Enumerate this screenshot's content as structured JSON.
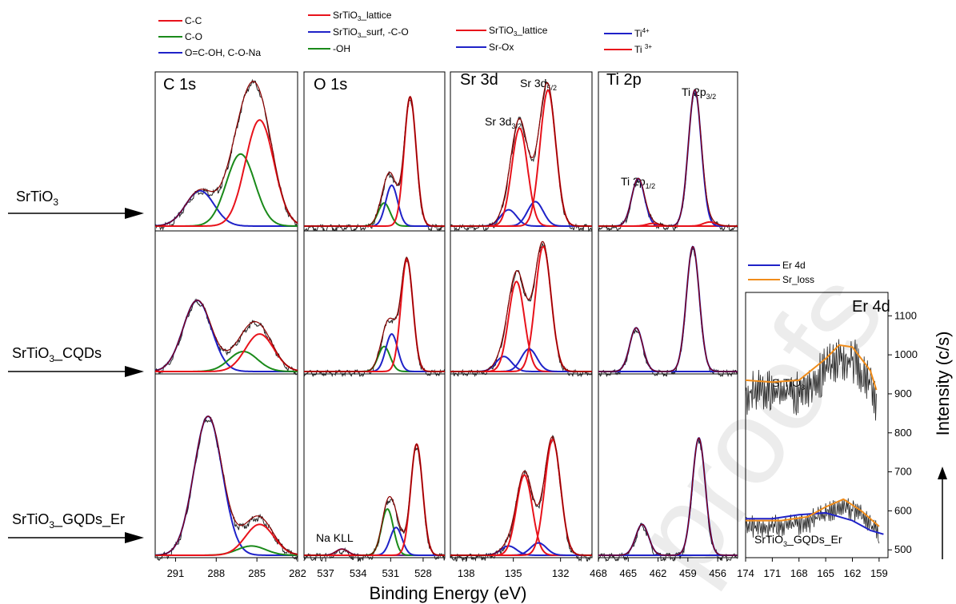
{
  "figure": {
    "xlabel": "Binding Energy (eV)",
    "ylabel": "Intensity (c/s)",
    "watermark": "proofs",
    "colors": {
      "c_red": "#e8121b",
      "c_green": "#1a8a1a",
      "c_blue": "#1f22c8",
      "c_darkred": "#8b0000",
      "c_orange": "#f08c1a",
      "c_purple": "#6a1f8f",
      "c_black": "#222222"
    }
  },
  "rows": [
    {
      "label_main": "SrTiO",
      "label_sub": "3",
      "label_rest": ""
    },
    {
      "label_main": "SrTiO",
      "label_sub": "3",
      "label_rest": "_CQDs"
    },
    {
      "label_main": "SrTiO",
      "label_sub": "3",
      "label_rest": "_GQDs_Er"
    }
  ],
  "panels_text": {
    "c1s": "C 1s",
    "o1s": "O 1s",
    "sr3d": "Sr 3d",
    "ti2p": "Ti 2p",
    "er4d": "Er 4d",
    "sr_d32_main": "Sr 3d",
    "sr_d32_sub": "3/2",
    "sr_d52_main": "Sr 3d",
    "sr_d52_sub": "5/2",
    "ti_p12_main": "Ti 2p",
    "ti_p12_sub": "1/2",
    "ti_p32_main": "Ti 2p",
    "ti_p32_sub": "3/2",
    "na_kll": "Na KLL",
    "er_label1_main": "SrTiO",
    "er_label1_sub": "3",
    "er_label2": "SrTiO",
    "er_label2_sub": "3",
    "er_label2_rest": "_GQDs_Er"
  },
  "legends": {
    "c1s": [
      {
        "label": "C-C",
        "color": "#e8121b"
      },
      {
        "label": "C-O",
        "color": "#1a8a1a"
      },
      {
        "label": "O=C-OH, C-O-Na",
        "color": "#1f22c8"
      }
    ],
    "o1s": [
      {
        "label": "SrTiO",
        "sub": "3",
        "rest": "_lattice",
        "color": "#e8121b"
      },
      {
        "label": "SrTiO",
        "sub": "3",
        "rest": "_surf, -C-O",
        "color": "#1f22c8"
      },
      {
        "label": "-OH",
        "sub": "",
        "rest": "",
        "color": "#1a8a1a"
      }
    ],
    "sr3d": [
      {
        "label": "SrTiO",
        "sub": "3",
        "rest": "_lattice",
        "color": "#e8121b"
      },
      {
        "label": "Sr-Ox",
        "sub": "",
        "rest": "",
        "color": "#1f22c8"
      }
    ],
    "ti2p": [
      {
        "label": "Ti",
        "sup": "4+",
        "color": "#1f22c8"
      },
      {
        "label": "Ti ",
        "sup": "3+",
        "color": "#e8121b"
      }
    ],
    "er4d": [
      {
        "label": "Er 4d",
        "color": "#1f22c8"
      },
      {
        "label": "Sr_loss",
        "color": "#f08c1a"
      }
    ]
  },
  "axes": {
    "c1s": {
      "ticks": [
        "291",
        "288",
        "285",
        "282"
      ]
    },
    "o1s": {
      "ticks": [
        "537",
        "534",
        "531",
        "528"
      ]
    },
    "sr3d": {
      "ticks": [
        "138",
        "135",
        "132"
      ]
    },
    "ti2p": {
      "ticks": [
        "468",
        "465",
        "462",
        "459",
        "456"
      ]
    },
    "er4d": {
      "ticks": [
        "174",
        "171",
        "168",
        "165",
        "162",
        "159"
      ]
    },
    "intensity": {
      "ticks": [
        "1100",
        "1000",
        "900",
        "800",
        "700",
        "600",
        "500"
      ]
    }
  },
  "chart_data": [
    {
      "type": "line",
      "title": "C 1s",
      "xlim": [
        292.5,
        282
      ],
      "direction": "reversed",
      "rows": [
        {
          "sample": "SrTiO3",
          "peaks": [
            {
              "component": "O=C-OH, C-O-Na",
              "center": 289.2,
              "height": 0.26
            },
            {
              "component": "C-O",
              "center": 286.2,
              "height": 0.53
            },
            {
              "component": "C-C",
              "center": 284.8,
              "height": 0.78
            }
          ]
        },
        {
          "sample": "SrTiO3_CQDs",
          "peaks": [
            {
              "component": "O=C-OH, C-O-Na",
              "center": 289.4,
              "height": 0.57
            },
            {
              "component": "C-O",
              "center": 286.0,
              "height": 0.16
            },
            {
              "component": "C-C",
              "center": 284.8,
              "height": 0.3
            }
          ]
        },
        {
          "sample": "SrTiO3_GQDs_Er",
          "peaks": [
            {
              "component": "O=C-OH, C-O-Na",
              "center": 288.6,
              "height": 0.9
            },
            {
              "component": "C-O",
              "center": 285.4,
              "height": 0.06
            },
            {
              "component": "C-C",
              "center": 284.8,
              "height": 0.2
            }
          ]
        }
      ]
    },
    {
      "type": "line",
      "title": "O 1s",
      "xlim": [
        539,
        526
      ],
      "direction": "reversed",
      "rows": [
        {
          "sample": "SrTiO3",
          "peaks": [
            {
              "component": "-OH",
              "center": 531.6,
              "height": 0.17
            },
            {
              "component": "SrTiO3_surf, -C-O",
              "center": 530.9,
              "height": 0.3
            },
            {
              "component": "SrTiO3_lattice",
              "center": 529.2,
              "height": 0.95
            }
          ]
        },
        {
          "sample": "SrTiO3_CQDs",
          "peaks": [
            {
              "component": "-OH",
              "center": 531.6,
              "height": 0.2
            },
            {
              "component": "SrTiO3_surf, -C-O",
              "center": 530.9,
              "height": 0.3
            },
            {
              "component": "SrTiO3_lattice",
              "center": 529.5,
              "height": 0.9
            }
          ]
        },
        {
          "sample": "SrTiO3_GQDs_Er",
          "peaks": [
            {
              "component": "Na KLL",
              "center": 535.5,
              "height": 0.04
            },
            {
              "component": "-OH",
              "center": 531.3,
              "height": 0.3
            },
            {
              "component": "SrTiO3_surf, -C-O",
              "center": 530.5,
              "height": 0.18
            },
            {
              "component": "SrTiO3_lattice",
              "center": 528.6,
              "height": 0.72
            }
          ]
        }
      ]
    },
    {
      "type": "line",
      "title": "Sr 3d",
      "xlim": [
        139,
        130
      ],
      "direction": "reversed",
      "rows": [
        {
          "sample": "SrTiO3",
          "peaks": [
            {
              "component": "Sr-Ox",
              "center": 135.3,
              "height": 0.12
            },
            {
              "component": "SrTiO3_lattice",
              "center": 134.6,
              "height": 0.72
            },
            {
              "component": "Sr-Ox",
              "center": 133.6,
              "height": 0.18
            },
            {
              "component": "SrTiO3_lattice",
              "center": 132.8,
              "height": 1.0
            }
          ]
        },
        {
          "sample": "SrTiO3_CQDs",
          "peaks": [
            {
              "component": "Sr-Ox",
              "center": 135.6,
              "height": 0.12
            },
            {
              "component": "SrTiO3_lattice",
              "center": 134.8,
              "height": 0.72
            },
            {
              "component": "Sr-Ox",
              "center": 134.0,
              "height": 0.18
            },
            {
              "component": "SrTiO3_lattice",
              "center": 133.1,
              "height": 1.0
            }
          ]
        },
        {
          "sample": "SrTiO3_GQDs_Er",
          "peaks": [
            {
              "component": "Sr-Ox",
              "center": 135.3,
              "height": 0.06
            },
            {
              "component": "SrTiO3_lattice",
              "center": 134.3,
              "height": 0.52
            },
            {
              "component": "Sr-Ox",
              "center": 133.4,
              "height": 0.08
            },
            {
              "component": "SrTiO3_lattice",
              "center": 132.5,
              "height": 0.75
            }
          ]
        }
      ]
    },
    {
      "type": "line",
      "title": "Ti 2p",
      "xlim": [
        468,
        454
      ],
      "direction": "reversed",
      "rows": [
        {
          "sample": "SrTiO3",
          "peaks": [
            {
              "component": "Ti4+",
              "center": 464.0,
              "height": 0.35
            },
            {
              "component": "Ti3+",
              "center": 462.5,
              "height": 0.02
            },
            {
              "component": "Ti4+",
              "center": 458.3,
              "height": 1.0
            },
            {
              "component": "Ti3+",
              "center": 456.8,
              "height": 0.03
            }
          ]
        },
        {
          "sample": "SrTiO3_CQDs",
          "peaks": [
            {
              "component": "Ti4+",
              "center": 464.2,
              "height": 0.35
            },
            {
              "component": "Ti4+",
              "center": 458.5,
              "height": 1.0
            }
          ]
        },
        {
          "sample": "SrTiO3_GQDs_Er",
          "peaks": [
            {
              "component": "Ti4+",
              "center": 463.6,
              "height": 0.2
            },
            {
              "component": "Ti4+",
              "center": 457.9,
              "height": 0.76
            }
          ]
        }
      ]
    },
    {
      "type": "line",
      "title": "Er 4d",
      "xlim": [
        174,
        158
      ],
      "direction": "reversed",
      "ylabel": "Intensity (c/s)",
      "ylim": [
        480,
        1160
      ],
      "series": [
        {
          "name": "SrTiO3 Sr_loss",
          "component": "Sr_loss",
          "x": [
            174,
            171,
            168,
            165,
            163.5,
            162,
            160,
            159.3
          ],
          "y": [
            935,
            930,
            935,
            990,
            1025,
            1020,
            960,
            910
          ]
        },
        {
          "name": "SrTiO3_GQDs_Er Er 4d",
          "component": "Er 4d",
          "x": [
            174,
            171,
            168,
            165,
            162,
            160,
            158.5
          ],
          "y": [
            580,
            580,
            590,
            595,
            575,
            550,
            540
          ]
        },
        {
          "name": "SrTiO3_GQDs_Er Sr_loss",
          "component": "Sr_loss",
          "x": [
            174,
            170,
            167,
            165,
            163,
            161,
            159
          ],
          "y": [
            575,
            575,
            585,
            610,
            630,
            600,
            560
          ]
        }
      ]
    }
  ]
}
